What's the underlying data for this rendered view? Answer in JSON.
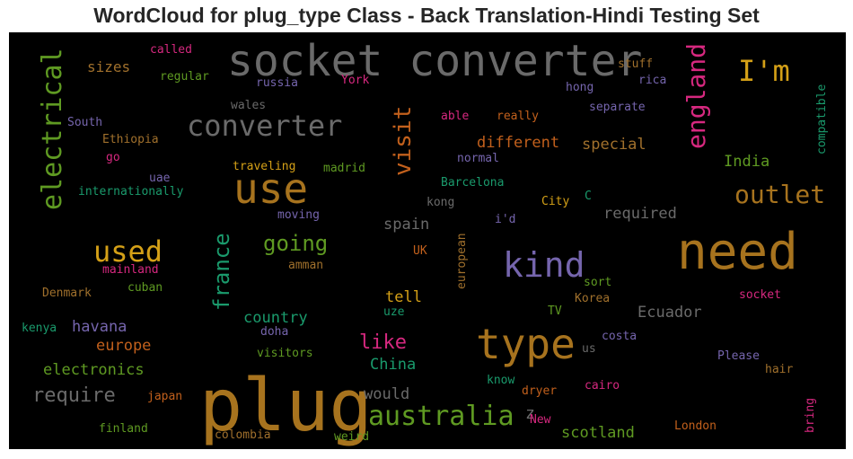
{
  "title": "WordCloud for plug_type Class - Back Translation-Hindi Testing Set",
  "colors": {
    "background": "#000000",
    "palette": {
      "gray": "#6a6a6a",
      "orange": "#c2601c",
      "gold": "#b8860b",
      "darkgold": "#a7731e",
      "green": "#5f9a22",
      "teal": "#1a9a6c",
      "purple": "#7565ad",
      "pink": "#d6287f",
      "brown": "#a0702c",
      "yellow": "#d4a017"
    }
  },
  "chart_data": {
    "type": "wordcloud",
    "words": [
      {
        "text": "socket converter",
        "color": "gray"
      },
      {
        "text": "plug",
        "color": "darkgold"
      },
      {
        "text": "need",
        "color": "darkgold"
      },
      {
        "text": "use",
        "color": "darkgold"
      },
      {
        "text": "type",
        "color": "darkgold"
      },
      {
        "text": "kind",
        "color": "purple"
      },
      {
        "text": "converter",
        "color": "gray"
      },
      {
        "text": "I'm",
        "color": "yellow"
      },
      {
        "text": "used",
        "color": "yellow"
      },
      {
        "text": "australia",
        "color": "green"
      },
      {
        "text": "electrical",
        "color": "green"
      },
      {
        "text": "outlet",
        "color": "darkgold"
      },
      {
        "text": "england",
        "color": "pink"
      },
      {
        "text": "visit",
        "color": "orange"
      },
      {
        "text": "france",
        "color": "teal"
      },
      {
        "text": "going",
        "color": "green"
      },
      {
        "text": "like",
        "color": "pink"
      },
      {
        "text": "require",
        "color": "gray"
      },
      {
        "text": "different",
        "color": "orange"
      },
      {
        "text": "special",
        "color": "brown"
      },
      {
        "text": "scotland",
        "color": "green"
      },
      {
        "text": "China",
        "color": "teal"
      },
      {
        "text": "Ecuador",
        "color": "gray"
      },
      {
        "text": "required",
        "color": "gray"
      },
      {
        "text": "country",
        "color": "teal"
      },
      {
        "text": "electronics",
        "color": "green"
      },
      {
        "text": "havana",
        "color": "purple"
      },
      {
        "text": "europe",
        "color": "orange"
      },
      {
        "text": "spain",
        "color": "gray"
      },
      {
        "text": "tell",
        "color": "yellow"
      },
      {
        "text": "would",
        "color": "gray"
      },
      {
        "text": "India",
        "color": "green"
      },
      {
        "text": "sizes",
        "color": "brown"
      },
      {
        "text": "z",
        "color": "gray"
      },
      {
        "text": "called",
        "color": "pink"
      },
      {
        "text": "regular",
        "color": "green"
      },
      {
        "text": "russia",
        "color": "purple"
      },
      {
        "text": "York",
        "color": "pink"
      },
      {
        "text": "stuff",
        "color": "brown"
      },
      {
        "text": "rica",
        "color": "purple"
      },
      {
        "text": "hong",
        "color": "purple"
      },
      {
        "text": "compatible",
        "color": "teal"
      },
      {
        "text": "wales",
        "color": "gray"
      },
      {
        "text": "separate",
        "color": "purple"
      },
      {
        "text": "South",
        "color": "purple"
      },
      {
        "text": "able",
        "color": "pink"
      },
      {
        "text": "really",
        "color": "orange"
      },
      {
        "text": "Ethiopia",
        "color": "brown"
      },
      {
        "text": "go",
        "color": "pink"
      },
      {
        "text": "normal",
        "color": "purple"
      },
      {
        "text": "uae",
        "color": "purple"
      },
      {
        "text": "traveling",
        "color": "yellow"
      },
      {
        "text": "madrid",
        "color": "green"
      },
      {
        "text": "internationally",
        "color": "teal"
      },
      {
        "text": "Barcelona",
        "color": "teal"
      },
      {
        "text": "City",
        "color": "yellow"
      },
      {
        "text": "C",
        "color": "teal"
      },
      {
        "text": "kong",
        "color": "gray"
      },
      {
        "text": "moving",
        "color": "purple"
      },
      {
        "text": "i'd",
        "color": "purple"
      },
      {
        "text": "UK",
        "color": "orange"
      },
      {
        "text": "european",
        "color": "brown"
      },
      {
        "text": "mainland",
        "color": "pink"
      },
      {
        "text": "amman",
        "color": "brown"
      },
      {
        "text": "Denmark",
        "color": "brown"
      },
      {
        "text": "cuban",
        "color": "green"
      },
      {
        "text": "sort",
        "color": "green"
      },
      {
        "text": "Korea",
        "color": "brown"
      },
      {
        "text": "socket",
        "color": "pink"
      },
      {
        "text": "uze",
        "color": "teal"
      },
      {
        "text": "TV",
        "color": "green"
      },
      {
        "text": "kenya",
        "color": "teal"
      },
      {
        "text": "doha",
        "color": "purple"
      },
      {
        "text": "costa",
        "color": "purple"
      },
      {
        "text": "visitors",
        "color": "green"
      },
      {
        "text": "us",
        "color": "gray"
      },
      {
        "text": "Please",
        "color": "purple"
      },
      {
        "text": "hair",
        "color": "brown"
      },
      {
        "text": "know",
        "color": "teal"
      },
      {
        "text": "cairo",
        "color": "pink"
      },
      {
        "text": "japan",
        "color": "orange"
      },
      {
        "text": "dryer",
        "color": "orange"
      },
      {
        "text": "bring",
        "color": "pink"
      },
      {
        "text": "New",
        "color": "pink"
      },
      {
        "text": "London",
        "color": "orange"
      },
      {
        "text": "finland",
        "color": "green"
      },
      {
        "text": "colombia",
        "color": "brown"
      },
      {
        "text": "weird",
        "color": "green"
      }
    ]
  }
}
